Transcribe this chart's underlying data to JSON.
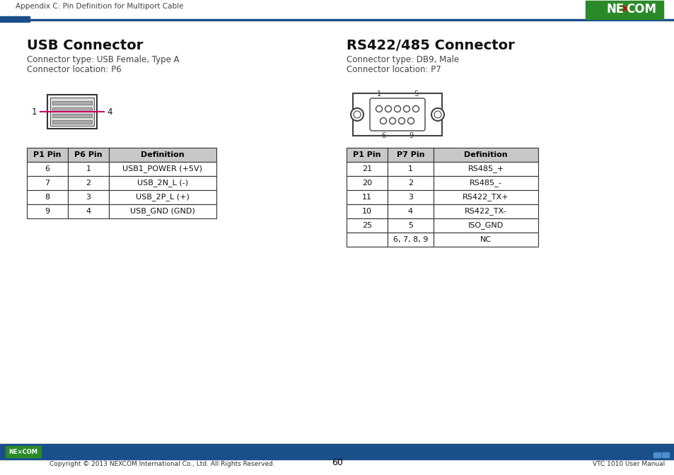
{
  "page_header_text": "Appendix C: Pin Definition for Multiport Cable",
  "page_number": "60",
  "footer_left": "Copyright © 2013 NEXCOM International Co., Ltd. All Rights Reserved.",
  "footer_right": "VTC 1010 User Manual",
  "header_bar_color": "#1b4f8a",
  "footer_bar_color": "#1b4f8a",
  "nexcom_bg_color": "#2a8a2a",
  "usb_title": "USB Connector",
  "usb_type": "Connector type: USB Female, Type A",
  "usb_location": "Connector location: P6",
  "rs_title": "RS422/485 Connector",
  "rs_type": "Connector type: DB9, Male",
  "rs_location": "Connector location: P7",
  "usb_table_headers": [
    "P1 Pin",
    "P6 Pin",
    "Definition"
  ],
  "usb_table_data": [
    [
      "6",
      "1",
      "USB1_POWER (+5V)"
    ],
    [
      "7",
      "2",
      "USB_2N_L (-)"
    ],
    [
      "8",
      "3",
      "USB_2P_L (+)"
    ],
    [
      "9",
      "4",
      "USB_GND (GND)"
    ]
  ],
  "rs_table_headers": [
    "P1 Pin",
    "P7 Pin",
    "Definition"
  ],
  "rs_table_data": [
    [
      "21",
      "1",
      "RS485_+"
    ],
    [
      "20",
      "2",
      "RS485_-"
    ],
    [
      "11",
      "3",
      "RS422_TX+"
    ],
    [
      "10",
      "4",
      "RS422_TX-"
    ],
    [
      "25",
      "5",
      "ISO_GND"
    ],
    [
      "",
      "6, 7, 8, 9",
      "NC"
    ]
  ],
  "accent_color": "#cc0066",
  "text_color": "#000000",
  "table_header_bg": "#c8c8c8",
  "table_border_color": "#555555",
  "line_color": "#1b4f8a"
}
